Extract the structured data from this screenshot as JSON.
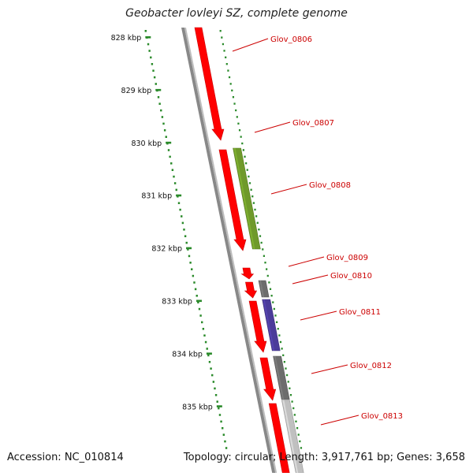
{
  "title": "Geobacter lovleyi SZ, complete genome",
  "footer": {
    "accession": "Accession: NC_010814",
    "summary": "Topology: circular; Length: 3,917,761 bp; Genes: 3,658"
  },
  "scale": {
    "unit": "kbp",
    "ticks": [
      {
        "kbp": 828,
        "label": "828 kbp"
      },
      {
        "kbp": 829,
        "label": "829 kbp"
      },
      {
        "kbp": 830,
        "label": "830 kbp"
      },
      {
        "kbp": 831,
        "label": "831 kbp"
      },
      {
        "kbp": 832,
        "label": "832 kbp"
      },
      {
        "kbp": 833,
        "label": "833 kbp"
      },
      {
        "kbp": 834,
        "label": "834 kbp"
      },
      {
        "kbp": 835,
        "label": "835 kbp"
      }
    ]
  },
  "colors": {
    "backbone": "#888888",
    "gene_red": "#ff0000",
    "gene_green": "#6f9a2a",
    "gene_blue": "#4b3c9a",
    "gene_gray": "#6d6d6d",
    "gene_lightgray": "#c0c0c0",
    "scale_tick": "#2a8a2a",
    "label_text": "#cc0000",
    "label_line": "#cc0000"
  },
  "genes": [
    {
      "id": "Glov_0806",
      "label": "Glov_0806"
    },
    {
      "id": "Glov_0807",
      "label": "Glov_0807"
    },
    {
      "id": "Glov_0808",
      "label": "Glov_0808"
    },
    {
      "id": "Glov_0809",
      "label": "Glov_0809"
    },
    {
      "id": "Glov_0810",
      "label": "Glov_0810"
    },
    {
      "id": "Glov_0811",
      "label": "Glov_0811"
    },
    {
      "id": "Glov_0812",
      "label": "Glov_0812"
    },
    {
      "id": "Glov_0813",
      "label": "Glov_0813"
    }
  ]
}
